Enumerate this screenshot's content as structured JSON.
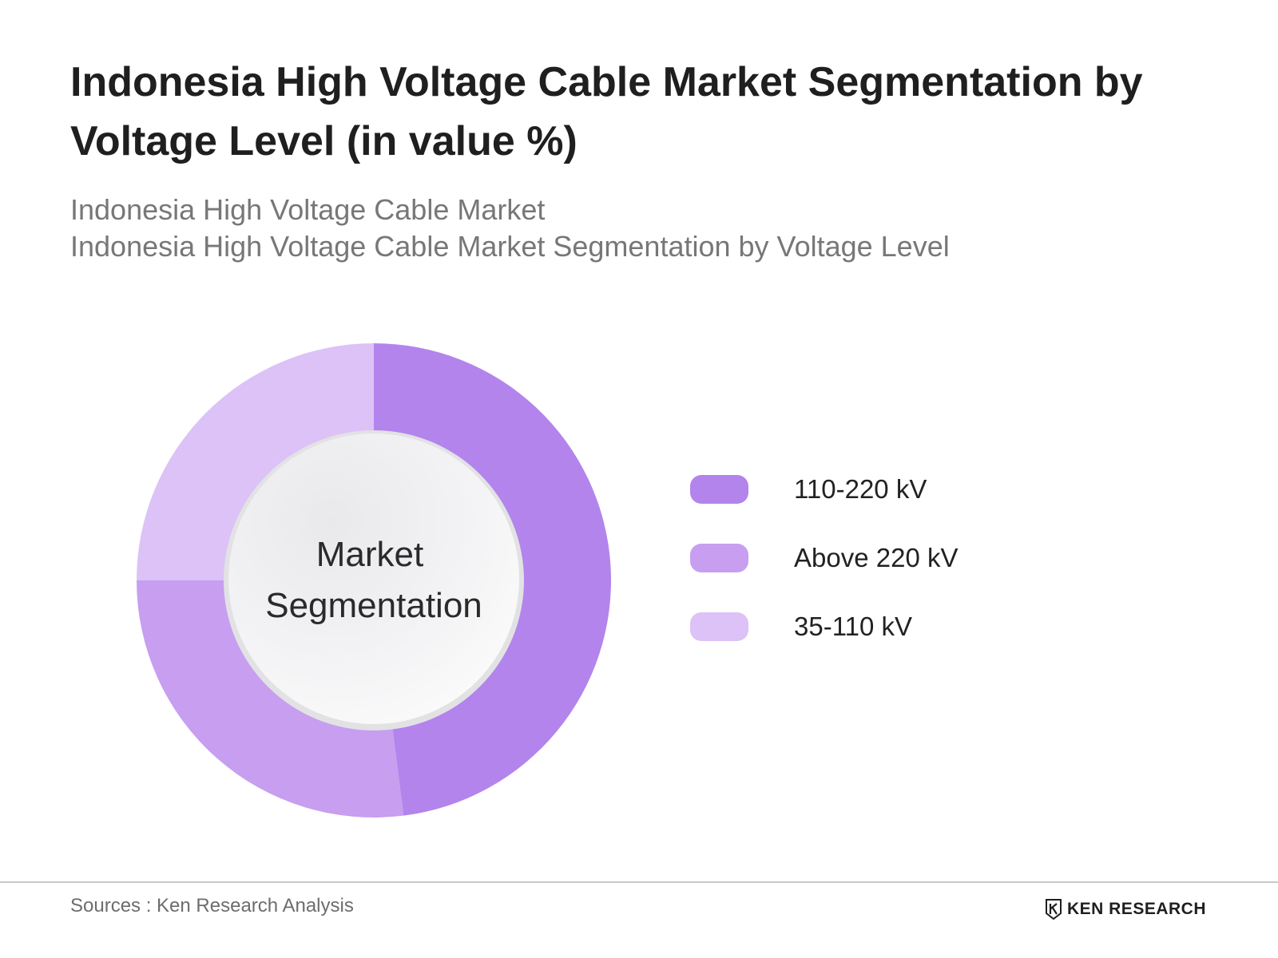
{
  "header": {
    "title": "Indonesia High Voltage Cable Market Segmentation by Voltage Level (in value %)",
    "subtitle_line1": "Indonesia High Voltage Cable Market",
    "subtitle_line2": "Indonesia High Voltage Cable Market Segmentation by Voltage Level"
  },
  "chart_data": {
    "type": "pie",
    "variant": "donut",
    "center_label_line1": "Market",
    "center_label_line2": "Segmentation",
    "categories": [
      "110-220 kV",
      "Above 220 kV",
      "35-110 kV"
    ],
    "values": [
      48,
      27,
      25
    ],
    "colors": [
      "#b384ec",
      "#c79ef0",
      "#dcc2f7"
    ],
    "legend_position": "right"
  },
  "footer": {
    "source": "Sources : Ken Research Analysis",
    "brand": "KEN RESEARCH",
    "brand_icon": "ken-research-logo-icon"
  }
}
